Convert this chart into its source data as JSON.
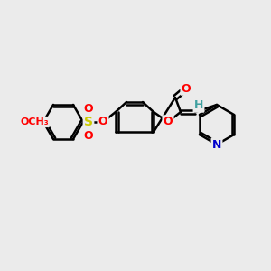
{
  "bg_color": "#ebebeb",
  "bond_color": "#000000",
  "bond_width": 1.8,
  "atom_colors": {
    "O": "#ff0000",
    "N": "#0000cc",
    "S": "#cccc00",
    "H": "#40a0a0",
    "C": "#000000"
  },
  "font_size_atom": 9,
  "font_size_small": 7
}
